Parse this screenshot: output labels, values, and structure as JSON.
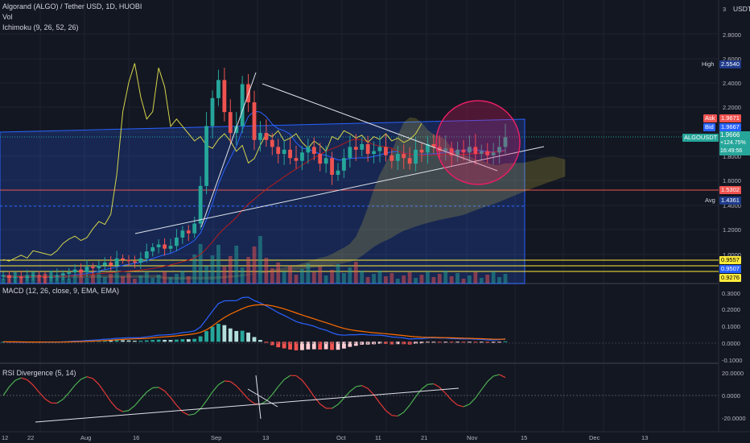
{
  "legend": {
    "title": "Algorand (ALGO) / Tether USD, 1D, HUOBI",
    "vol": "Vol",
    "ichimoku": "Ichimoku (9, 26, 52, 26)",
    "macd": "MACD (12, 26, close, 9, EMA, EMA)",
    "rsi": "RSI Divergence (5, 14)"
  },
  "currency": "USDT",
  "price_axis": {
    "ticks": [
      "3",
      "2.8000",
      "2.6000",
      "2.4000",
      "2.2000",
      "1.8000",
      "1.6000",
      "1.4000",
      "1.2000",
      "1.0000"
    ]
  },
  "macd_axis": {
    "ticks": [
      "0.3000",
      "0.2000",
      "0.1000",
      "0.0000",
      "-0.1000"
    ]
  },
  "rsi_axis": {
    "ticks": [
      "20.0000",
      "0.0000",
      "-20.0000"
    ]
  },
  "time_axis": {
    "labels": [
      "12",
      "22",
      "Aug",
      "16",
      "Sep",
      "13",
      "Oct",
      "11",
      "21",
      "Nov",
      "15",
      "Dec",
      "13"
    ]
  },
  "price_tags": {
    "high_label": "High",
    "high_value": "2.5540",
    "ask_label": "Ask",
    "ask_value": "1.9671",
    "bid_label": "Bid",
    "bid_value": "1.9667",
    "symbol": "ALGOUSDT",
    "last": "1.9666",
    "change": "+124.75%",
    "countdown": "16:49:56",
    "level_1": "1.5302",
    "avg_label": "Avg",
    "avg_value": "1.4361",
    "level_2": "0.9557",
    "level_3": "0.9507",
    "level_4": "0.9276"
  },
  "colors": {
    "up": "#26a69a",
    "down": "#ef5350",
    "bg": "#131722",
    "grid": "#1f2330",
    "box": "#2962ff",
    "circle": "#e91e63",
    "yellow": "#ffeb3b"
  },
  "chart_data": {
    "type": "candlestick",
    "symbol": "ALGOUSDT",
    "interval": "1D",
    "price_ylim": [
      0.92,
      3.0
    ],
    "close_series_approx": [
      0.98,
      0.96,
      0.97,
      0.96,
      0.97,
      0.98,
      0.97,
      0.96,
      0.97,
      0.98,
      0.99,
      1.0,
      1.02,
      1.0,
      1.04,
      1.03,
      1.05,
      1.07,
      1.05,
      1.1,
      1.09,
      1.08,
      1.07,
      1.1,
      1.15,
      1.18,
      1.2,
      1.17,
      1.19,
      1.25,
      1.3,
      1.28,
      1.35,
      1.62,
      2.05,
      2.25,
      2.38,
      2.15,
      2.0,
      2.05,
      2.35,
      2.22,
      1.95,
      2.0,
      1.95,
      1.9,
      1.85,
      1.88,
      1.82,
      1.8,
      1.86,
      1.9,
      1.85,
      1.78,
      1.82,
      1.7,
      1.73,
      1.82,
      1.9,
      1.88,
      1.92,
      1.85,
      1.87,
      1.9,
      1.84,
      1.8,
      1.85,
      1.82,
      1.78,
      1.88,
      1.86,
      1.92,
      1.9,
      1.87,
      1.89,
      1.84,
      1.88,
      1.86,
      1.9,
      1.85,
      1.87,
      1.84,
      1.86,
      1.9,
      1.97
    ],
    "high": 2.554,
    "last": 1.9666,
    "ask": 1.9671,
    "bid": 1.9667,
    "change_percent": 124.75,
    "horizontal_levels": [
      1.5302,
      1.4361,
      0.9557,
      0.9507,
      0.9276
    ],
    "macd": {
      "ylim": [
        -0.15,
        0.35
      ],
      "macd_peak": 0.3,
      "signal_peak": 0.265
    },
    "rsi_divergence": {
      "ylim": [
        -25,
        25
      ]
    }
  }
}
